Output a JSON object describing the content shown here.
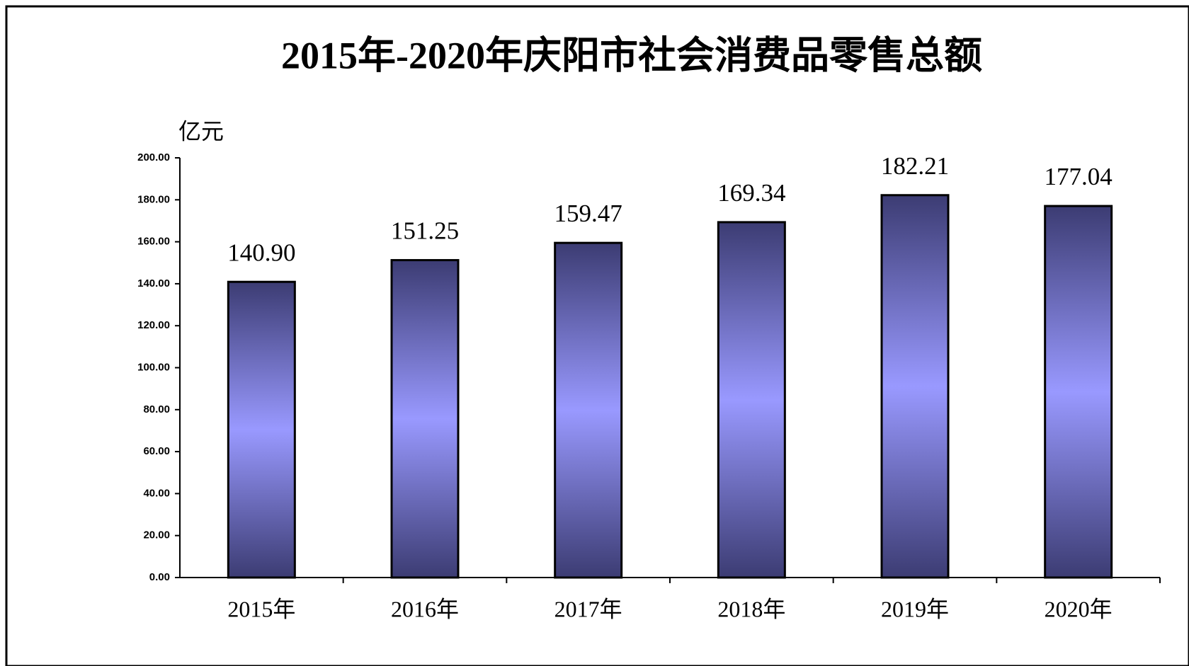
{
  "chart_data": {
    "type": "bar",
    "title": "2015年-2020年庆阳市社会消费品零售总额",
    "y_unit": "亿元",
    "categories": [
      "2015年",
      "2016年",
      "2017年",
      "2018年",
      "2019年",
      "2020年"
    ],
    "values": [
      140.9,
      151.25,
      159.47,
      169.34,
      182.21,
      177.04
    ],
    "value_labels": [
      "140.90",
      "151.25",
      "159.47",
      "169.34",
      "182.21",
      "177.04"
    ],
    "color": "#9999ff",
    "ylim": [
      0,
      200
    ],
    "yticks": [
      {
        "value": 0,
        "label": "0.00"
      },
      {
        "value": 20,
        "label": "20.00"
      },
      {
        "value": 40,
        "label": "40.00"
      },
      {
        "value": 60,
        "label": "60.00"
      },
      {
        "value": 80,
        "label": "80.00"
      },
      {
        "value": 100,
        "label": "100.00"
      },
      {
        "value": 120,
        "label": "120.00"
      },
      {
        "value": 140,
        "label": "140.00"
      },
      {
        "value": 160,
        "label": "160.00"
      },
      {
        "value": 180,
        "label": "180.00"
      },
      {
        "value": 200,
        "label": "200.00"
      }
    ],
    "grid": false
  }
}
